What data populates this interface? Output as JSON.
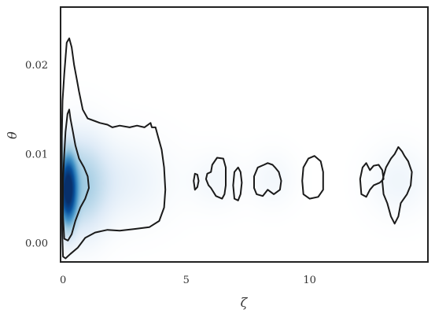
{
  "chart_data": {
    "type": "density-contour",
    "xlabel": "ζ",
    "ylabel": "θ",
    "xlim": [
      -0.1,
      14.8
    ],
    "ylim": [
      -0.0021,
      0.0265
    ],
    "xticks": [
      {
        "value": 0,
        "label": "0"
      },
      {
        "value": 5,
        "label": "5"
      },
      {
        "value": 10,
        "label": "10"
      }
    ],
    "yticks": [
      {
        "value": 0.0,
        "label": "0.00"
      },
      {
        "value": 0.01,
        "label": "0.01"
      },
      {
        "value": 0.02,
        "label": "0.02"
      }
    ],
    "grid": false,
    "colormap": "Blues",
    "colors": {
      "contour": "#1a1a1a",
      "frame": "#222222",
      "fill_peak": "#08306b"
    },
    "density_blobs": [
      {
        "x": 0.2,
        "y": 0.006,
        "sx": 0.22,
        "sy": 0.0024,
        "w": 1.0
      },
      {
        "x": 0.7,
        "y": 0.0065,
        "sx": 0.7,
        "sy": 0.0035,
        "w": 0.22
      },
      {
        "x": 2.3,
        "y": 0.007,
        "sx": 1.3,
        "sy": 0.003,
        "w": 0.06
      },
      {
        "x": 6.2,
        "y": 0.007,
        "sx": 0.7,
        "sy": 0.002,
        "w": 0.03
      },
      {
        "x": 8.5,
        "y": 0.0072,
        "sx": 0.6,
        "sy": 0.002,
        "w": 0.03
      },
      {
        "x": 13.6,
        "y": 0.007,
        "sx": 0.8,
        "sy": 0.0025,
        "w": 0.04
      }
    ],
    "contours": [
      {
        "level": "outer",
        "points": [
          [
            0,
            -0.0015
          ],
          [
            0.1,
            -0.0017
          ],
          [
            0.3,
            -0.0012
          ],
          [
            0.6,
            -0.0005
          ],
          [
            0.9,
            0.0006
          ],
          [
            1.3,
            0.0012
          ],
          [
            1.8,
            0.0015
          ],
          [
            2.3,
            0.0014
          ],
          [
            2.9,
            0.0016
          ],
          [
            3.5,
            0.0018
          ],
          [
            3.9,
            0.0025
          ],
          [
            4.1,
            0.004
          ],
          [
            4.15,
            0.006
          ],
          [
            4.1,
            0.0085
          ],
          [
            4.0,
            0.0105
          ],
          [
            3.85,
            0.012
          ],
          [
            3.75,
            0.013
          ],
          [
            3.6,
            0.013
          ],
          [
            3.55,
            0.0135
          ],
          [
            3.3,
            0.013
          ],
          [
            3.0,
            0.0132
          ],
          [
            2.7,
            0.013
          ],
          [
            2.3,
            0.0132
          ],
          [
            2.0,
            0.013
          ],
          [
            1.8,
            0.0133
          ],
          [
            1.5,
            0.0135
          ],
          [
            1.3,
            0.0137
          ],
          [
            1.0,
            0.014
          ],
          [
            0.8,
            0.015
          ],
          [
            0.65,
            0.017
          ],
          [
            0.55,
            0.0185
          ],
          [
            0.45,
            0.02
          ],
          [
            0.35,
            0.022
          ],
          [
            0.25,
            0.023
          ],
          [
            0.15,
            0.0225
          ],
          [
            0.05,
            0.019
          ],
          [
            -0.02,
            0.016
          ],
          [
            -0.05,
            0.012
          ],
          [
            -0.05,
            0.005
          ],
          [
            -0.03,
            0.001
          ],
          [
            0,
            -0.0015
          ]
        ]
      },
      {
        "level": "inner",
        "points": [
          [
            0.05,
            0.0005
          ],
          [
            0.2,
            0.0003
          ],
          [
            0.35,
            0.001
          ],
          [
            0.5,
            0.0025
          ],
          [
            0.7,
            0.004
          ],
          [
            0.9,
            0.005
          ],
          [
            1.05,
            0.0062
          ],
          [
            1.0,
            0.0075
          ],
          [
            0.85,
            0.0085
          ],
          [
            0.65,
            0.0095
          ],
          [
            0.5,
            0.011
          ],
          [
            0.4,
            0.0125
          ],
          [
            0.3,
            0.014
          ],
          [
            0.25,
            0.015
          ],
          [
            0.18,
            0.0145
          ],
          [
            0.1,
            0.0125
          ],
          [
            0.05,
            0.01
          ],
          [
            0.0,
            0.007
          ],
          [
            0.0,
            0.003
          ],
          [
            0.05,
            0.0005
          ]
        ]
      },
      {
        "level": "outer",
        "points": [
          [
            5.35,
            0.006
          ],
          [
            5.45,
            0.0063
          ],
          [
            5.5,
            0.007
          ],
          [
            5.45,
            0.0077
          ],
          [
            5.35,
            0.0078
          ],
          [
            5.3,
            0.007
          ],
          [
            5.35,
            0.006
          ]
        ]
      },
      {
        "level": "outer",
        "points": [
          [
            5.9,
            0.0065
          ],
          [
            6.0,
            0.0062
          ],
          [
            6.2,
            0.0053
          ],
          [
            6.45,
            0.005
          ],
          [
            6.55,
            0.0055
          ],
          [
            6.6,
            0.0065
          ],
          [
            6.6,
            0.0085
          ],
          [
            6.5,
            0.0095
          ],
          [
            6.25,
            0.0096
          ],
          [
            6.05,
            0.0088
          ],
          [
            6.0,
            0.008
          ],
          [
            5.85,
            0.0078
          ],
          [
            5.8,
            0.0072
          ],
          [
            5.9,
            0.0065
          ]
        ]
      },
      {
        "level": "outer",
        "points": [
          [
            6.95,
            0.005
          ],
          [
            7.1,
            0.0048
          ],
          [
            7.2,
            0.0055
          ],
          [
            7.25,
            0.0068
          ],
          [
            7.2,
            0.008
          ],
          [
            7.1,
            0.0085
          ],
          [
            6.95,
            0.008
          ],
          [
            6.9,
            0.0065
          ],
          [
            6.95,
            0.005
          ]
        ]
      },
      {
        "level": "outer",
        "points": [
          [
            7.75,
            0.0062
          ],
          [
            7.85,
            0.0055
          ],
          [
            8.1,
            0.0053
          ],
          [
            8.3,
            0.006
          ],
          [
            8.55,
            0.0055
          ],
          [
            8.8,
            0.006
          ],
          [
            8.85,
            0.007
          ],
          [
            8.75,
            0.008
          ],
          [
            8.6,
            0.0085
          ],
          [
            8.5,
            0.0088
          ],
          [
            8.3,
            0.009
          ],
          [
            8.15,
            0.0088
          ],
          [
            7.9,
            0.0085
          ],
          [
            7.75,
            0.0075
          ],
          [
            7.75,
            0.0062
          ]
        ]
      },
      {
        "level": "outer",
        "points": [
          [
            9.75,
            0.0055
          ],
          [
            10.0,
            0.005
          ],
          [
            10.35,
            0.0052
          ],
          [
            10.55,
            0.006
          ],
          [
            10.55,
            0.008
          ],
          [
            10.45,
            0.0092
          ],
          [
            10.2,
            0.0098
          ],
          [
            9.95,
            0.0095
          ],
          [
            9.75,
            0.0085
          ],
          [
            9.7,
            0.007
          ],
          [
            9.75,
            0.0055
          ]
        ]
      },
      {
        "level": "outer",
        "points": [
          [
            12.1,
            0.0055
          ],
          [
            12.3,
            0.0052
          ],
          [
            12.45,
            0.006
          ],
          [
            12.6,
            0.0065
          ],
          [
            12.85,
            0.0068
          ],
          [
            13.0,
            0.0072
          ],
          [
            12.95,
            0.0082
          ],
          [
            12.8,
            0.0088
          ],
          [
            12.6,
            0.0087
          ],
          [
            12.45,
            0.0082
          ],
          [
            12.3,
            0.009
          ],
          [
            12.15,
            0.0085
          ],
          [
            12.05,
            0.0072
          ],
          [
            12.1,
            0.0055
          ]
        ]
      },
      {
        "level": "outer",
        "points": [
          [
            13.0,
            0.0055
          ],
          [
            13.15,
            0.0045
          ],
          [
            13.3,
            0.003
          ],
          [
            13.45,
            0.0022
          ],
          [
            13.6,
            0.003
          ],
          [
            13.7,
            0.0045
          ],
          [
            13.95,
            0.0055
          ],
          [
            14.1,
            0.0065
          ],
          [
            14.15,
            0.008
          ],
          [
            14.0,
            0.0092
          ],
          [
            13.85,
            0.0098
          ],
          [
            13.75,
            0.0103
          ],
          [
            13.6,
            0.0108
          ],
          [
            13.45,
            0.01
          ],
          [
            13.3,
            0.0095
          ],
          [
            13.1,
            0.0085
          ],
          [
            12.95,
            0.007
          ],
          [
            13.0,
            0.0055
          ]
        ]
      }
    ]
  }
}
